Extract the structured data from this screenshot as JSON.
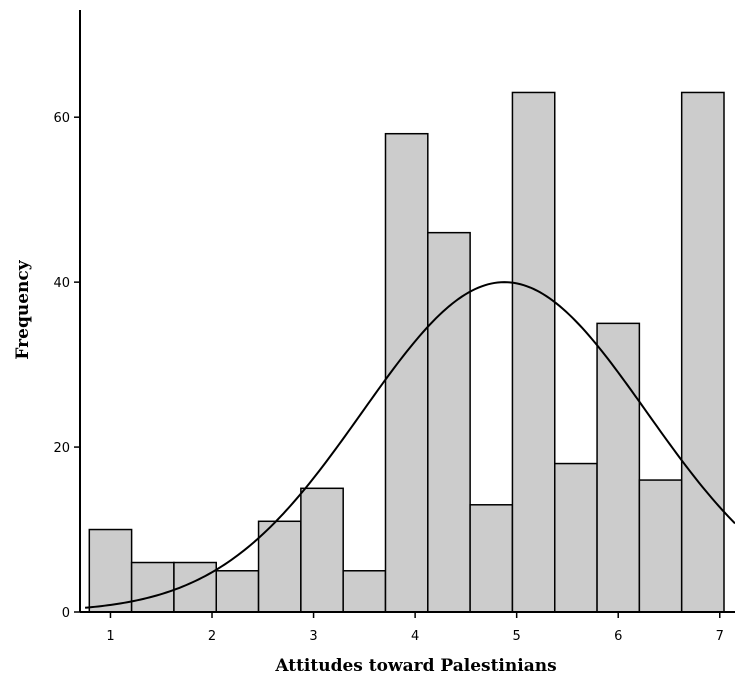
{
  "chart_data": {
    "type": "bar",
    "subtype": "histogram",
    "xlabel": "Attitudes toward Palestinians",
    "ylabel": "Frequency",
    "x_ticks": [
      "1",
      "2",
      "3",
      "4",
      "5",
      "6",
      "7"
    ],
    "y_ticks": [
      "0",
      "20",
      "40",
      "60"
    ],
    "xlim": [
      0.7,
      7.15
    ],
    "ylim": [
      0,
      73
    ],
    "bin_width": 0.4167,
    "bins": [
      {
        "start": 0.7917,
        "end": 1.2083,
        "value": 10
      },
      {
        "start": 1.2083,
        "end": 1.625,
        "value": 6
      },
      {
        "start": 1.625,
        "end": 2.0417,
        "value": 6
      },
      {
        "start": 2.0417,
        "end": 2.4583,
        "value": 5
      },
      {
        "start": 2.4583,
        "end": 2.875,
        "value": 11
      },
      {
        "start": 2.875,
        "end": 3.2917,
        "value": 15
      },
      {
        "start": 3.2917,
        "end": 3.7083,
        "value": 5
      },
      {
        "start": 3.7083,
        "end": 4.125,
        "value": 58
      },
      {
        "start": 4.125,
        "end": 4.5417,
        "value": 46
      },
      {
        "start": 4.5417,
        "end": 4.9583,
        "value": 13
      },
      {
        "start": 4.9583,
        "end": 5.375,
        "value": 63
      },
      {
        "start": 5.375,
        "end": 5.7917,
        "value": 18
      },
      {
        "start": 5.7917,
        "end": 6.2083,
        "value": 35
      },
      {
        "start": 6.2083,
        "end": 6.625,
        "value": 16
      },
      {
        "start": 6.625,
        "end": 7.0417,
        "value": 63
      }
    ],
    "normal_curve": {
      "mean": 4.88,
      "std_dev": 1.4,
      "peak": 40
    },
    "colors": {
      "bar_fill": "#cccccc",
      "bar_stroke": "#000000",
      "curve": "#000000",
      "axis": "#000000"
    },
    "grid": false,
    "legend": "none"
  }
}
